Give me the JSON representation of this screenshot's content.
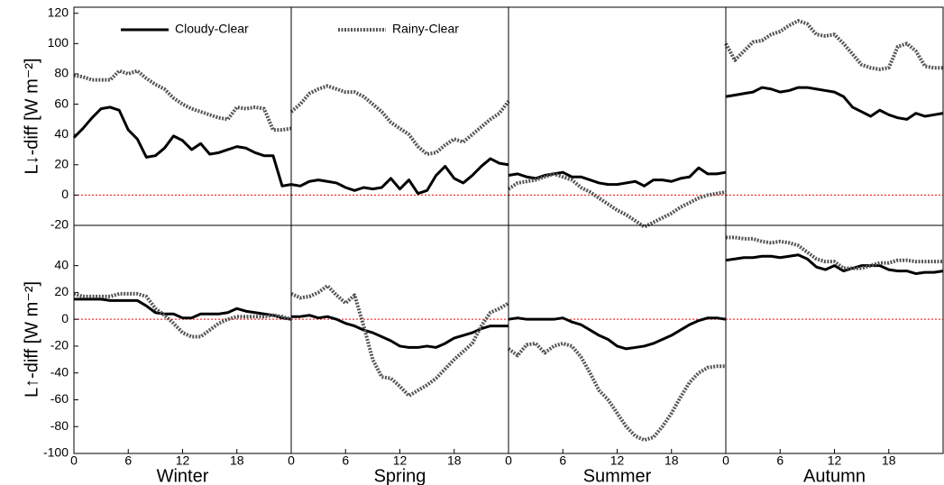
{
  "chart_data": [
    {
      "type": "line",
      "ylabel": "L↓-diff [W m⁻²]",
      "xlim": [
        0,
        24
      ],
      "ylim": [
        -20,
        124
      ],
      "yticks": [
        -20,
        0,
        20,
        40,
        60,
        80,
        100,
        120
      ],
      "reference_line": {
        "value": 0,
        "color": "#ff0000"
      },
      "legend_series": [
        0
      ],
      "x": [
        0,
        1,
        2,
        3,
        4,
        5,
        6,
        7,
        8,
        9,
        10,
        11,
        12,
        13,
        14,
        15,
        16,
        17,
        18,
        19,
        20,
        21,
        22,
        23,
        24
      ],
      "series": [
        {
          "name": "Cloudy-Clear",
          "color": "#000000",
          "style": "solid",
          "values": [
            38,
            44,
            51,
            57,
            58,
            56,
            43,
            37,
            25,
            26,
            31,
            39,
            36,
            30,
            34,
            27,
            28,
            30,
            32,
            31,
            28,
            26,
            26,
            6,
            7
          ]
        },
        {
          "name": "Rainy-Clear",
          "color": "#555555",
          "style": "dotted",
          "values": [
            79,
            78,
            76,
            76,
            76,
            82,
            80,
            82,
            77,
            73,
            70,
            64,
            60,
            57,
            55,
            53,
            51,
            50,
            58,
            57,
            58,
            57,
            43,
            43,
            44
          ]
        }
      ]
    },
    {
      "type": "line",
      "xlim": [
        0,
        24
      ],
      "ylim": [
        -20,
        124
      ],
      "reference_line": {
        "value": 0,
        "color": "#ff0000"
      },
      "legend_series": [
        1
      ],
      "x": [
        0,
        1,
        2,
        3,
        4,
        5,
        6,
        7,
        8,
        9,
        10,
        11,
        12,
        13,
        14,
        15,
        16,
        17,
        18,
        19,
        20,
        21,
        22,
        23,
        24
      ],
      "series": [
        {
          "name": "Cloudy-Clear",
          "color": "#000000",
          "style": "solid",
          "values": [
            7,
            6,
            9,
            10,
            9,
            8,
            5,
            3,
            5,
            4,
            5,
            11,
            4,
            10,
            1,
            3,
            13,
            19,
            11,
            8,
            13,
            19,
            24,
            21,
            20
          ]
        },
        {
          "name": "Rainy-Clear",
          "color": "#555555",
          "style": "dotted",
          "values": [
            55,
            60,
            67,
            70,
            72,
            70,
            68,
            68,
            65,
            60,
            55,
            48,
            44,
            40,
            32,
            27,
            28,
            33,
            37,
            35,
            40,
            45,
            50,
            54,
            62
          ]
        }
      ]
    },
    {
      "type": "line",
      "xlim": [
        0,
        24
      ],
      "ylim": [
        -20,
        124
      ],
      "reference_line": {
        "value": 0,
        "color": "#ff0000"
      },
      "x": [
        0,
        1,
        2,
        3,
        4,
        5,
        6,
        7,
        8,
        9,
        10,
        11,
        12,
        13,
        14,
        15,
        16,
        17,
        18,
        19,
        20,
        21,
        22,
        23,
        24
      ],
      "series": [
        {
          "name": "Cloudy-Clear",
          "color": "#000000",
          "style": "solid",
          "values": [
            13,
            14,
            12,
            11,
            13,
            14,
            15,
            12,
            12,
            10,
            8,
            7,
            7,
            8,
            9,
            6,
            10,
            10,
            9,
            11,
            12,
            18,
            14,
            14,
            15
          ]
        },
        {
          "name": "Rainy-Clear",
          "color": "#555555",
          "style": "dotted",
          "values": [
            4,
            8,
            9,
            10,
            12,
            14,
            12,
            10,
            5,
            2,
            -2,
            -6,
            -10,
            -13,
            -17,
            -21,
            -18,
            -15,
            -12,
            -8,
            -5,
            -2,
            0,
            1,
            2
          ]
        }
      ]
    },
    {
      "type": "line",
      "xlim": [
        0,
        24
      ],
      "ylim": [
        -20,
        124
      ],
      "reference_line": {
        "value": 0,
        "color": "#ff0000"
      },
      "x": [
        0,
        1,
        2,
        3,
        4,
        5,
        6,
        7,
        8,
        9,
        10,
        11,
        12,
        13,
        14,
        15,
        16,
        17,
        18,
        19,
        20,
        21,
        22,
        23,
        24
      ],
      "series": [
        {
          "name": "Cloudy-Clear",
          "color": "#000000",
          "style": "solid",
          "values": [
            65,
            66,
            67,
            68,
            71,
            70,
            68,
            69,
            71,
            71,
            70,
            69,
            68,
            65,
            58,
            55,
            52,
            56,
            53,
            51,
            50,
            54,
            52,
            53,
            54
          ]
        },
        {
          "name": "Rainy-Clear",
          "color": "#555555",
          "style": "dotted",
          "values": [
            100,
            89,
            95,
            101,
            102,
            106,
            108,
            112,
            115,
            113,
            106,
            105,
            106,
            100,
            93,
            86,
            84,
            83,
            84,
            98,
            100,
            95,
            85,
            84,
            84
          ]
        }
      ]
    },
    {
      "type": "line",
      "ylabel": "L↑-diff [W m⁻²]",
      "xlabel": "Winter",
      "xlim": [
        0,
        24
      ],
      "ylim": [
        -100,
        70
      ],
      "xticks": [
        0,
        6,
        12,
        18
      ],
      "yticks": [
        -100,
        -80,
        -60,
        -40,
        -20,
        0,
        20,
        40
      ],
      "reference_line": {
        "value": 0,
        "color": "#ff0000"
      },
      "x": [
        0,
        1,
        2,
        3,
        4,
        5,
        6,
        7,
        8,
        9,
        10,
        11,
        12,
        13,
        14,
        15,
        16,
        17,
        18,
        19,
        20,
        21,
        22,
        23,
        24
      ],
      "series": [
        {
          "name": "Cloudy-Clear",
          "color": "#000000",
          "style": "solid",
          "values": [
            15,
            15,
            15,
            15,
            14,
            14,
            14,
            14,
            10,
            5,
            4,
            4,
            1,
            1,
            4,
            4,
            4,
            5,
            8,
            6,
            5,
            4,
            3,
            1,
            0
          ]
        },
        {
          "name": "Rainy-Clear",
          "color": "#555555",
          "style": "dotted",
          "values": [
            19,
            17,
            17,
            17,
            17,
            19,
            19,
            19,
            17,
            8,
            3,
            -3,
            -10,
            -13,
            -13,
            -8,
            -3,
            0,
            2,
            2,
            2,
            2,
            3,
            2,
            0
          ]
        }
      ]
    },
    {
      "type": "line",
      "xlabel": "Spring",
      "xlim": [
        0,
        24
      ],
      "ylim": [
        -100,
        70
      ],
      "xticks": [
        0,
        6,
        12,
        18
      ],
      "reference_line": {
        "value": 0,
        "color": "#ff0000"
      },
      "x": [
        0,
        1,
        2,
        3,
        4,
        5,
        6,
        7,
        8,
        9,
        10,
        11,
        12,
        13,
        14,
        15,
        16,
        17,
        18,
        19,
        20,
        21,
        22,
        23,
        24
      ],
      "series": [
        {
          "name": "Cloudy-Clear",
          "color": "#000000",
          "style": "solid",
          "values": [
            2,
            2,
            3,
            1,
            2,
            0,
            -3,
            -5,
            -8,
            -10,
            -13,
            -16,
            -20,
            -21,
            -21,
            -20,
            -21,
            -18,
            -14,
            -12,
            -10,
            -7,
            -5,
            -5,
            -5
          ]
        },
        {
          "name": "Rainy-Clear",
          "color": "#555555",
          "style": "dotted",
          "values": [
            19,
            16,
            17,
            20,
            25,
            18,
            12,
            18,
            -5,
            -30,
            -43,
            -44,
            -50,
            -57,
            -53,
            -49,
            -44,
            -37,
            -30,
            -24,
            -18,
            -5,
            5,
            8,
            12
          ]
        }
      ]
    },
    {
      "type": "line",
      "xlabel": "Summer",
      "xlim": [
        0,
        24
      ],
      "ylim": [
        -100,
        70
      ],
      "xticks": [
        0,
        6,
        12,
        18
      ],
      "reference_line": {
        "value": 0,
        "color": "#ff0000"
      },
      "x": [
        0,
        1,
        2,
        3,
        4,
        5,
        6,
        7,
        8,
        9,
        10,
        11,
        12,
        13,
        14,
        15,
        16,
        17,
        18,
        19,
        20,
        21,
        22,
        23,
        24
      ],
      "series": [
        {
          "name": "Cloudy-Clear",
          "color": "#000000",
          "style": "solid",
          "values": [
            0,
            1,
            0,
            0,
            0,
            0,
            1,
            -2,
            -4,
            -8,
            -12,
            -15,
            -20,
            -22,
            -21,
            -20,
            -18,
            -15,
            -12,
            -8,
            -4,
            -1,
            1,
            1,
            0
          ]
        },
        {
          "name": "Rainy-Clear",
          "color": "#555555",
          "style": "dotted",
          "values": [
            -22,
            -27,
            -19,
            -18,
            -25,
            -20,
            -18,
            -20,
            -28,
            -40,
            -53,
            -60,
            -70,
            -80,
            -87,
            -90,
            -88,
            -80,
            -70,
            -58,
            -47,
            -40,
            -36,
            -35,
            -35
          ]
        }
      ]
    },
    {
      "type": "line",
      "xlabel": "Autumn",
      "xlim": [
        0,
        24
      ],
      "ylim": [
        -100,
        70
      ],
      "xticks": [
        0,
        6,
        12,
        18
      ],
      "reference_line": {
        "value": 0,
        "color": "#ff0000"
      },
      "x": [
        0,
        1,
        2,
        3,
        4,
        5,
        6,
        7,
        8,
        9,
        10,
        11,
        12,
        13,
        14,
        15,
        16,
        17,
        18,
        19,
        20,
        21,
        22,
        23,
        24
      ],
      "series": [
        {
          "name": "Cloudy-Clear",
          "color": "#000000",
          "style": "solid",
          "values": [
            44,
            45,
            46,
            46,
            47,
            47,
            46,
            47,
            48,
            45,
            39,
            37,
            40,
            36,
            38,
            40,
            40,
            40,
            37,
            36,
            36,
            34,
            35,
            35,
            36
          ]
        },
        {
          "name": "Rainy-Clear",
          "color": "#555555",
          "style": "dotted",
          "values": [
            61,
            61,
            60,
            60,
            58,
            57,
            58,
            57,
            55,
            50,
            45,
            43,
            43,
            38,
            38,
            38,
            40,
            42,
            42,
            44,
            44,
            43,
            43,
            43,
            43
          ]
        }
      ]
    }
  ]
}
